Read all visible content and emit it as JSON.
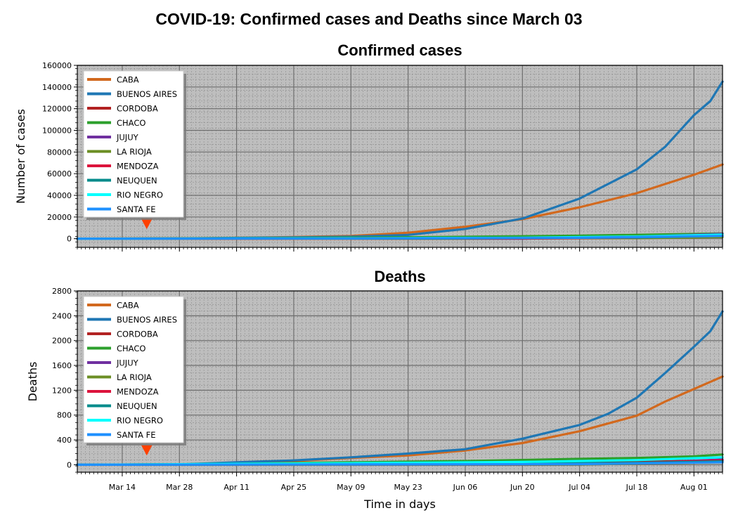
{
  "figure": {
    "title": "COVID-19: Confirmed cases and Deaths since March 03",
    "xlabel": "Time in days",
    "background": "#bebebe"
  },
  "chart_data": [
    {
      "type": "line",
      "title": "Confirmed cases",
      "xlabel": "",
      "ylabel": "Number of cases",
      "ylim": [
        -8000,
        160000
      ],
      "yticks": [
        0,
        20000,
        40000,
        60000,
        80000,
        100000,
        120000,
        140000,
        160000
      ],
      "xlim": [
        "2020-03-03",
        "2020-08-08"
      ],
      "x_ticks": [
        "Mar 14",
        "Mar 28",
        "Apr 11",
        "Apr 25",
        "May 09",
        "May 23",
        "Jun 06",
        "Jun 20",
        "Jul 04",
        "Jul 18",
        "Aug 01"
      ],
      "x_tick_dates": [
        "2020-03-14",
        "2020-03-28",
        "2020-04-11",
        "2020-04-25",
        "2020-05-09",
        "2020-05-23",
        "2020-06-06",
        "2020-06-20",
        "2020-07-04",
        "2020-07-18",
        "2020-08-01"
      ],
      "grid": true,
      "legend": "upper left",
      "marker": {
        "shape": "triangle-down",
        "date": "2020-03-20",
        "value": 14000,
        "color": "#ff4000"
      },
      "series": [
        {
          "name": "CABA",
          "color": "#d2691e",
          "points": [
            [
              "2020-03-03",
              0
            ],
            [
              "2020-03-28",
              250
            ],
            [
              "2020-04-25",
              1500
            ],
            [
              "2020-05-09",
              2500
            ],
            [
              "2020-05-23",
              5500
            ],
            [
              "2020-06-06",
              11000
            ],
            [
              "2020-06-20",
              18000
            ],
            [
              "2020-07-04",
              29000
            ],
            [
              "2020-07-18",
              42000
            ],
            [
              "2020-08-01",
              59000
            ],
            [
              "2020-08-08",
              68500
            ]
          ]
        },
        {
          "name": "BUENOS AIRES",
          "color": "#1f77b4",
          "points": [
            [
              "2020-03-03",
              0
            ],
            [
              "2020-03-28",
              150
            ],
            [
              "2020-04-25",
              1200
            ],
            [
              "2020-05-09",
              1800
            ],
            [
              "2020-05-23",
              3500
            ],
            [
              "2020-06-06",
              9000
            ],
            [
              "2020-06-20",
              18500
            ],
            [
              "2020-07-04",
              37000
            ],
            [
              "2020-07-18",
              64000
            ],
            [
              "2020-07-25",
              85000
            ],
            [
              "2020-08-01",
              114000
            ],
            [
              "2020-08-05",
              127000
            ],
            [
              "2020-08-08",
              145000
            ]
          ]
        },
        {
          "name": "CORDOBA",
          "color": "#b22222",
          "points": [
            [
              "2020-03-03",
              0
            ],
            [
              "2020-05-09",
              300
            ],
            [
              "2020-06-20",
              700
            ],
            [
              "2020-07-18",
              2000
            ],
            [
              "2020-08-08",
              4000
            ]
          ]
        },
        {
          "name": "CHACO",
          "color": "#2ca02c",
          "points": [
            [
              "2020-03-03",
              0
            ],
            [
              "2020-04-11",
              400
            ],
            [
              "2020-05-09",
              1000
            ],
            [
              "2020-06-06",
              1700
            ],
            [
              "2020-07-04",
              2800
            ],
            [
              "2020-08-08",
              4800
            ]
          ]
        },
        {
          "name": "JUJUY",
          "color": "#7030a0",
          "points": [
            [
              "2020-03-03",
              0
            ],
            [
              "2020-06-20",
              50
            ],
            [
              "2020-07-18",
              1800
            ],
            [
              "2020-08-08",
              4500
            ]
          ]
        },
        {
          "name": "LA RIOJA",
          "color": "#6b8e23",
          "points": [
            [
              "2020-03-03",
              0
            ],
            [
              "2020-06-06",
              60
            ],
            [
              "2020-07-18",
              500
            ],
            [
              "2020-08-08",
              1500
            ]
          ]
        },
        {
          "name": "MENDOZA",
          "color": "#dc143c",
          "points": [
            [
              "2020-03-03",
              0
            ],
            [
              "2020-06-20",
              150
            ],
            [
              "2020-07-18",
              1000
            ],
            [
              "2020-08-08",
              3500
            ]
          ]
        },
        {
          "name": "NEUQUEN",
          "color": "#008b8b",
          "points": [
            [
              "2020-03-03",
              0
            ],
            [
              "2020-06-06",
              300
            ],
            [
              "2020-07-18",
              1100
            ],
            [
              "2020-08-08",
              2700
            ]
          ]
        },
        {
          "name": "RIO NEGRO",
          "color": "#00ffff",
          "points": [
            [
              "2020-03-03",
              0
            ],
            [
              "2020-05-09",
              400
            ],
            [
              "2020-06-20",
              900
            ],
            [
              "2020-07-18",
              2000
            ],
            [
              "2020-08-08",
              3800
            ]
          ]
        },
        {
          "name": "SANTA FE",
          "color": "#1e90ff",
          "points": [
            [
              "2020-03-03",
              0
            ],
            [
              "2020-05-09",
              250
            ],
            [
              "2020-07-04",
              800
            ],
            [
              "2020-08-08",
              2600
            ]
          ]
        }
      ]
    },
    {
      "type": "line",
      "title": "Deaths",
      "xlabel": "Time in days",
      "ylabel": "Deaths",
      "ylim": [
        -120,
        2800
      ],
      "yticks": [
        0,
        400,
        800,
        1200,
        1600,
        2000,
        2400,
        2800
      ],
      "xlim": [
        "2020-03-03",
        "2020-08-08"
      ],
      "x_ticks": [
        "Mar 14",
        "Mar 28",
        "Apr 11",
        "Apr 25",
        "May 09",
        "May 23",
        "Jun 06",
        "Jun 20",
        "Jul 04",
        "Jul 18",
        "Aug 01"
      ],
      "x_tick_dates": [
        "2020-03-14",
        "2020-03-28",
        "2020-04-11",
        "2020-04-25",
        "2020-05-09",
        "2020-05-23",
        "2020-06-06",
        "2020-06-20",
        "2020-07-04",
        "2020-07-18",
        "2020-08-01"
      ],
      "grid": true,
      "legend": "upper left",
      "marker": {
        "shape": "triangle-down",
        "date": "2020-03-20",
        "value": 240,
        "color": "#ff4000"
      },
      "series": [
        {
          "name": "CABA",
          "color": "#d2691e",
          "points": [
            [
              "2020-03-03",
              0
            ],
            [
              "2020-03-28",
              5
            ],
            [
              "2020-04-11",
              30
            ],
            [
              "2020-04-25",
              60
            ],
            [
              "2020-05-09",
              110
            ],
            [
              "2020-05-23",
              150
            ],
            [
              "2020-06-06",
              230
            ],
            [
              "2020-06-20",
              350
            ],
            [
              "2020-07-04",
              540
            ],
            [
              "2020-07-18",
              790
            ],
            [
              "2020-07-25",
              1020
            ],
            [
              "2020-08-01",
              1220
            ],
            [
              "2020-08-08",
              1420
            ]
          ]
        },
        {
          "name": "BUENOS AIRES",
          "color": "#1f77b4",
          "points": [
            [
              "2020-03-03",
              0
            ],
            [
              "2020-03-28",
              5
            ],
            [
              "2020-04-11",
              40
            ],
            [
              "2020-04-25",
              70
            ],
            [
              "2020-05-09",
              120
            ],
            [
              "2020-05-23",
              180
            ],
            [
              "2020-06-06",
              250
            ],
            [
              "2020-06-20",
              420
            ],
            [
              "2020-07-04",
              640
            ],
            [
              "2020-07-11",
              820
            ],
            [
              "2020-07-18",
              1080
            ],
            [
              "2020-07-25",
              1480
            ],
            [
              "2020-08-01",
              1900
            ],
            [
              "2020-08-05",
              2150
            ],
            [
              "2020-08-08",
              2470
            ]
          ]
        },
        {
          "name": "CORDOBA",
          "color": "#b22222",
          "points": [
            [
              "2020-03-03",
              0
            ],
            [
              "2020-05-09",
              20
            ],
            [
              "2020-06-20",
              35
            ],
            [
              "2020-07-18",
              50
            ],
            [
              "2020-08-08",
              70
            ]
          ]
        },
        {
          "name": "CHACO",
          "color": "#2ca02c",
          "points": [
            [
              "2020-03-03",
              0
            ],
            [
              "2020-04-11",
              15
            ],
            [
              "2020-05-09",
              40
            ],
            [
              "2020-06-06",
              60
            ],
            [
              "2020-07-04",
              95
            ],
            [
              "2020-07-18",
              110
            ],
            [
              "2020-08-01",
              135
            ],
            [
              "2020-08-08",
              165
            ]
          ]
        },
        {
          "name": "JUJUY",
          "color": "#7030a0",
          "points": [
            [
              "2020-03-03",
              0
            ],
            [
              "2020-07-04",
              2
            ],
            [
              "2020-07-18",
              20
            ],
            [
              "2020-08-08",
              85
            ]
          ]
        },
        {
          "name": "LA RIOJA",
          "color": "#6b8e23",
          "points": [
            [
              "2020-03-03",
              0
            ],
            [
              "2020-07-04",
              5
            ],
            [
              "2020-08-08",
              40
            ]
          ]
        },
        {
          "name": "MENDOZA",
          "color": "#dc143c",
          "points": [
            [
              "2020-03-03",
              0
            ],
            [
              "2020-06-20",
              10
            ],
            [
              "2020-07-18",
              30
            ],
            [
              "2020-08-08",
              70
            ]
          ]
        },
        {
          "name": "NEUQUEN",
          "color": "#008b8b",
          "points": [
            [
              "2020-03-03",
              0
            ],
            [
              "2020-06-06",
              10
            ],
            [
              "2020-07-18",
              30
            ],
            [
              "2020-08-08",
              55
            ]
          ]
        },
        {
          "name": "RIO NEGRO",
          "color": "#00ffff",
          "points": [
            [
              "2020-03-03",
              0
            ],
            [
              "2020-05-09",
              25
            ],
            [
              "2020-06-20",
              45
            ],
            [
              "2020-07-18",
              75
            ],
            [
              "2020-08-08",
              120
            ]
          ]
        },
        {
          "name": "SANTA FE",
          "color": "#1e90ff",
          "points": [
            [
              "2020-03-03",
              0
            ],
            [
              "2020-07-04",
              10
            ],
            [
              "2020-08-08",
              40
            ]
          ]
        }
      ]
    }
  ]
}
